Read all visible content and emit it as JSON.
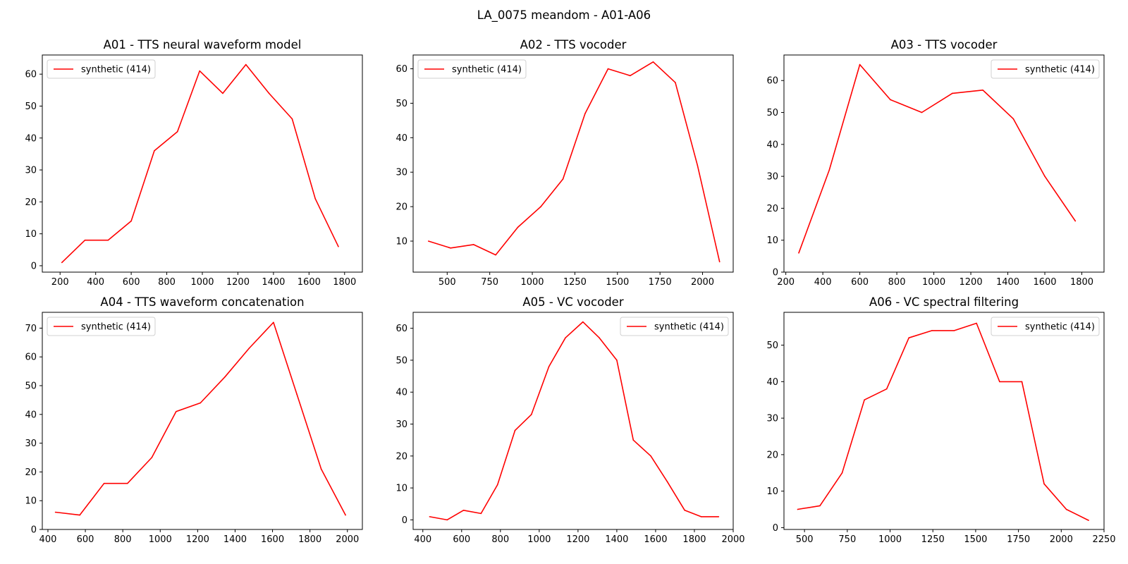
{
  "figure": {
    "title": "LA_0075 meandom - A01-A06"
  },
  "chart_data": [
    {
      "type": "line",
      "title": "A01 - TTS neural waveform model",
      "xlabel": "",
      "ylabel": "",
      "xlim": [
        100,
        1900
      ],
      "ylim": [
        -2,
        66
      ],
      "xticks": [
        200,
        400,
        600,
        800,
        1000,
        1200,
        1400,
        1600,
        1800
      ],
      "yticks": [
        0,
        10,
        20,
        30,
        40,
        50,
        60
      ],
      "legend": "top-left",
      "grid": false,
      "series": [
        {
          "name": "synthetic (414)",
          "color": "#ff0000",
          "x": [
            210,
            340,
            470,
            600,
            730,
            860,
            985,
            1115,
            1245,
            1375,
            1505,
            1635,
            1765
          ],
          "y": [
            1,
            8,
            8,
            14,
            36,
            42,
            61,
            54,
            63,
            54,
            46,
            21,
            6
          ]
        }
      ]
    },
    {
      "type": "line",
      "title": "A02 - TTS vocoder",
      "xlabel": "",
      "ylabel": "",
      "xlim": [
        300,
        2180
      ],
      "ylim": [
        1,
        64
      ],
      "xticks": [
        500,
        750,
        1000,
        1250,
        1500,
        1750,
        2000
      ],
      "yticks": [
        10,
        20,
        30,
        40,
        50,
        60
      ],
      "legend": "top-left",
      "grid": false,
      "series": [
        {
          "name": "synthetic (414)",
          "color": "#ff0000",
          "x": [
            390,
            520,
            655,
            785,
            915,
            1050,
            1180,
            1310,
            1445,
            1575,
            1710,
            1840,
            1970,
            2100
          ],
          "y": [
            10,
            8,
            9,
            6,
            14,
            20,
            28,
            47,
            60,
            58,
            62,
            56,
            32,
            4
          ]
        }
      ]
    },
    {
      "type": "line",
      "title": "A03 - TTS vocoder",
      "xlabel": "",
      "ylabel": "",
      "xlim": [
        190,
        1920
      ],
      "ylim": [
        0,
        68
      ],
      "xticks": [
        200,
        400,
        600,
        800,
        1000,
        1200,
        1400,
        1600,
        1800
      ],
      "yticks": [
        0,
        10,
        20,
        30,
        40,
        50,
        60
      ],
      "legend": "top-right",
      "grid": false,
      "series": [
        {
          "name": "synthetic (414)",
          "color": "#ff0000",
          "x": [
            270,
            435,
            600,
            765,
            935,
            1100,
            1265,
            1430,
            1600,
            1765
          ],
          "y": [
            6,
            32,
            65,
            54,
            50,
            56,
            57,
            48,
            30,
            16
          ]
        }
      ]
    },
    {
      "type": "line",
      "title": "A04 - TTS waveform concatenation",
      "xlabel": "",
      "ylabel": "",
      "xlim": [
        370,
        2080
      ],
      "ylim": [
        0,
        75.5
      ],
      "xticks": [
        400,
        600,
        800,
        1000,
        1200,
        1400,
        1600,
        1800,
        2000
      ],
      "yticks": [
        0,
        10,
        20,
        30,
        40,
        50,
        60,
        70
      ],
      "legend": "top-left",
      "grid": false,
      "series": [
        {
          "name": "synthetic (414)",
          "color": "#ff0000",
          "x": [
            440,
            570,
            700,
            825,
            955,
            1085,
            1215,
            1345,
            1475,
            1605,
            1730,
            1860,
            1990
          ],
          "y": [
            6,
            5,
            16,
            16,
            25,
            41,
            44,
            53,
            63,
            72,
            47,
            21,
            5
          ]
        }
      ]
    },
    {
      "type": "line",
      "title": "A05 - VC vocoder",
      "xlabel": "",
      "ylabel": "",
      "xlim": [
        350,
        2000
      ],
      "ylim": [
        -3,
        65
      ],
      "xticks": [
        400,
        600,
        800,
        1000,
        1200,
        1400,
        1600,
        1800,
        2000
      ],
      "yticks": [
        0,
        10,
        20,
        30,
        40,
        50,
        60
      ],
      "legend": "top-right",
      "grid": false,
      "series": [
        {
          "name": "synthetic (414)",
          "color": "#ff0000",
          "x": [
            435,
            525,
            610,
            700,
            785,
            875,
            960,
            1050,
            1135,
            1225,
            1310,
            1400,
            1485,
            1575,
            1660,
            1750,
            1835,
            1925
          ],
          "y": [
            1,
            0,
            3,
            2,
            11,
            28,
            33,
            48,
            57,
            62,
            57,
            50,
            25,
            20,
            12,
            3,
            1,
            1
          ]
        }
      ]
    },
    {
      "type": "line",
      "title": "A06 - VC spectral filtering",
      "xlabel": "",
      "ylabel": "",
      "xlim": [
        380,
        2250
      ],
      "ylim": [
        -0.5,
        59
      ],
      "xticks": [
        500,
        750,
        1000,
        1250,
        1500,
        1750,
        2000,
        2250
      ],
      "yticks": [
        0,
        10,
        20,
        30,
        40,
        50
      ],
      "legend": "top-right",
      "grid": false,
      "series": [
        {
          "name": "synthetic (414)",
          "color": "#ff0000",
          "x": [
            460,
            590,
            720,
            850,
            980,
            1110,
            1245,
            1375,
            1505,
            1640,
            1770,
            1900,
            2030,
            2160
          ],
          "y": [
            5,
            6,
            15,
            35,
            38,
            52,
            54,
            54,
            56,
            40,
            40,
            12,
            5,
            2
          ]
        }
      ]
    }
  ]
}
